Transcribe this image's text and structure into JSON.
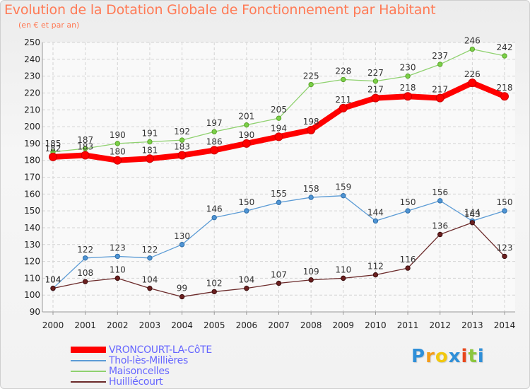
{
  "title": "Evolution de la Dotation Globale de Fonctionnement par Habitant",
  "subtitle": "(en € et par an)",
  "logo": {
    "letters": [
      "P",
      "r",
      "o",
      "x",
      "i",
      "t",
      "i"
    ],
    "colors": [
      "#2f8fd8",
      "#f39c1a",
      "#f2c80f",
      "#2f8fd8",
      "#e8471c",
      "#8cc63e",
      "#2f8fd8"
    ]
  },
  "chart_data": {
    "type": "line",
    "x": [
      "2000",
      "2001",
      "2002",
      "2003",
      "2004",
      "2005",
      "2006",
      "2007",
      "2008",
      "2009",
      "2010",
      "2011",
      "2012",
      "2013",
      "2014"
    ],
    "ylim": [
      90,
      250
    ],
    "yticks": [
      90,
      100,
      110,
      120,
      130,
      140,
      150,
      160,
      170,
      180,
      190,
      200,
      210,
      220,
      230,
      240,
      250
    ],
    "grid": true,
    "legend_position": "bottom-left",
    "series": [
      {
        "name": "VRONCOURT-LA-CôTE",
        "color": "#ff0000",
        "values": [
          182,
          183,
          180,
          181,
          183,
          186,
          190,
          194,
          198,
          211,
          217,
          218,
          217,
          226,
          218
        ]
      },
      {
        "name": "Thol-lès-Millières",
        "color": "#5b9bd5",
        "values": [
          104,
          122,
          123,
          122,
          130,
          146,
          150,
          155,
          158,
          159,
          144,
          150,
          156,
          144,
          150
        ]
      },
      {
        "name": "Maisoncelles",
        "color": "#8fd16f",
        "values": [
          185,
          187,
          190,
          191,
          192,
          197,
          201,
          205,
          225,
          228,
          227,
          230,
          237,
          246,
          242
        ]
      },
      {
        "name": "Huilliécourt",
        "color": "#6b2a2a",
        "values": [
          104,
          108,
          110,
          104,
          99,
          102,
          104,
          107,
          109,
          110,
          112,
          116,
          136,
          143,
          123
        ]
      }
    ]
  }
}
